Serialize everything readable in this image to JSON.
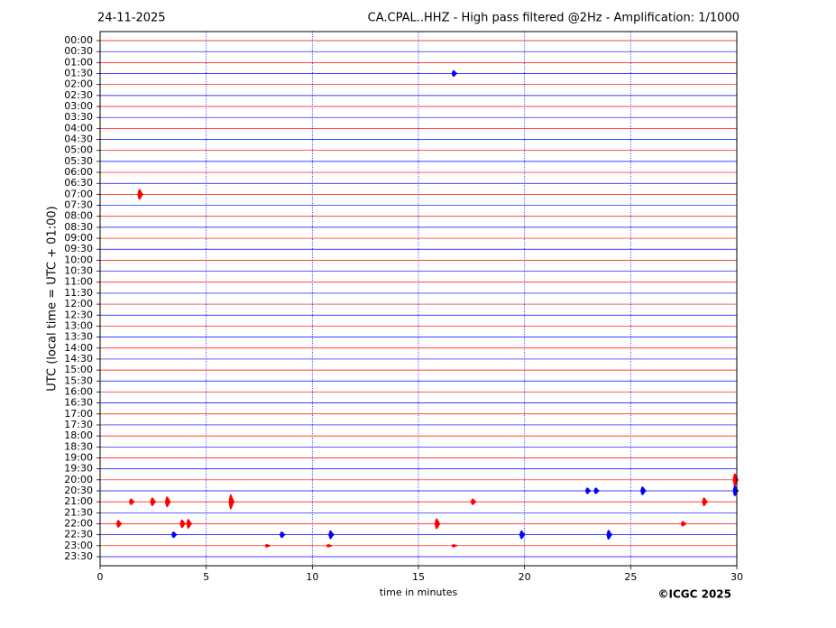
{
  "chart_data": {
    "type": "helicorder",
    "date": "24-11-2025",
    "title": "CA.CPAL..HHZ - High pass filtered @2Hz - Amplification: 1/1000",
    "y_label": "UTC (local time = UTC + 01:00)",
    "x_label": "time in minutes",
    "credit": "©ICGC 2025",
    "categories": [
      "00:00",
      "00:30",
      "01:00",
      "01:30",
      "02:00",
      "02:30",
      "03:00",
      "03:30",
      "04:00",
      "04:30",
      "05:00",
      "05:30",
      "06:00",
      "06:30",
      "07:00",
      "07:30",
      "08:00",
      "08:30",
      "09:00",
      "09:30",
      "10:00",
      "10:30",
      "11:00",
      "11:30",
      "12:00",
      "12:30",
      "13:00",
      "13:30",
      "14:00",
      "14:30",
      "15:00",
      "15:30",
      "16:00",
      "16:30",
      "17:00",
      "17:30",
      "18:00",
      "18:30",
      "19:00",
      "19:30",
      "20:00",
      "20:30",
      "21:00",
      "21:30",
      "22:00",
      "22:30",
      "23:00",
      "23:30"
    ],
    "colors": [
      "#ff0000",
      "#0000ff"
    ],
    "xlim": [
      0,
      30
    ],
    "xticks": [
      0,
      5,
      10,
      15,
      20,
      25,
      30
    ],
    "grid": true,
    "grid_color": "#0000ff",
    "events": [
      {
        "time": "01:30",
        "minute": 16.7,
        "amplitude": 0.3
      },
      {
        "time": "07:00",
        "minute": 1.9,
        "amplitude": 0.5
      },
      {
        "time": "20:00",
        "minute": 29.95,
        "amplitude": 0.6
      },
      {
        "time": "20:30",
        "minute": 23.0,
        "amplitude": 0.3
      },
      {
        "time": "20:30",
        "minute": 23.4,
        "amplitude": 0.3
      },
      {
        "time": "20:30",
        "minute": 25.6,
        "amplitude": 0.4
      },
      {
        "time": "20:30",
        "minute": 29.95,
        "amplitude": 0.5
      },
      {
        "time": "21:00",
        "minute": 1.5,
        "amplitude": 0.3
      },
      {
        "time": "21:00",
        "minute": 2.5,
        "amplitude": 0.4
      },
      {
        "time": "21:00",
        "minute": 3.2,
        "amplitude": 0.5
      },
      {
        "time": "21:00",
        "minute": 6.2,
        "amplitude": 0.7
      },
      {
        "time": "21:00",
        "minute": 17.6,
        "amplitude": 0.3
      },
      {
        "time": "21:00",
        "minute": 28.5,
        "amplitude": 0.4
      },
      {
        "time": "22:00",
        "minute": 0.9,
        "amplitude": 0.35
      },
      {
        "time": "22:00",
        "minute": 3.9,
        "amplitude": 0.4
      },
      {
        "time": "22:00",
        "minute": 4.2,
        "amplitude": 0.45
      },
      {
        "time": "22:00",
        "minute": 15.9,
        "amplitude": 0.5
      },
      {
        "time": "22:00",
        "minute": 27.5,
        "amplitude": 0.25
      },
      {
        "time": "22:30",
        "minute": 3.5,
        "amplitude": 0.3
      },
      {
        "time": "22:30",
        "minute": 8.6,
        "amplitude": 0.3
      },
      {
        "time": "22:30",
        "minute": 10.9,
        "amplitude": 0.4
      },
      {
        "time": "22:30",
        "minute": 19.9,
        "amplitude": 0.4
      },
      {
        "time": "22:30",
        "minute": 24.0,
        "amplitude": 0.45
      },
      {
        "time": "23:00",
        "minute": 7.9,
        "amplitude": 0.15
      },
      {
        "time": "23:00",
        "minute": 10.8,
        "amplitude": 0.15
      },
      {
        "time": "23:00",
        "minute": 16.7,
        "amplitude": 0.15
      }
    ]
  }
}
